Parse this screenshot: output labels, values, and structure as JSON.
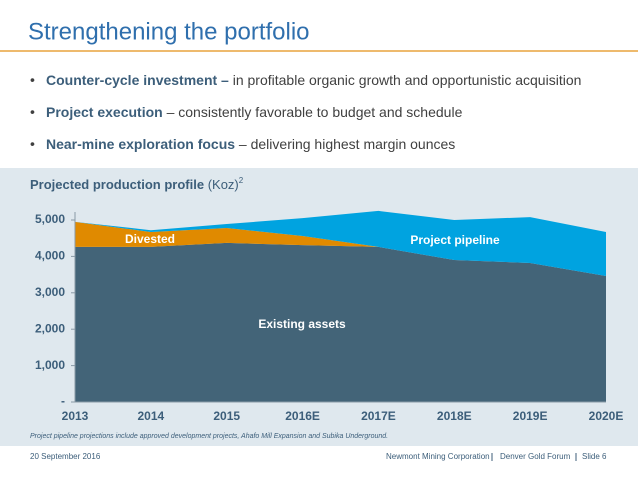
{
  "header": {
    "title": "Strengthening the portfolio"
  },
  "bullets": [
    {
      "bold": "Counter-cycle investment –",
      "text": " in profitable organic growth and opportunistic acquisition"
    },
    {
      "bold": "Project execution",
      "text": " – consistently favorable to budget and schedule"
    },
    {
      "bold": "Near-mine exploration focus",
      "text": " – delivering highest margin ounces"
    }
  ],
  "chart_data": {
    "type": "stacked-area",
    "title": "Projected production profile",
    "unit": "(Koz)",
    "footnote_marker": "2",
    "categories": [
      "2013",
      "2014",
      "2015",
      "2016E",
      "2017E",
      "2018E",
      "2019E",
      "2020E"
    ],
    "series": [
      {
        "name": "Existing assets",
        "color": "#436478",
        "values": [
          4260,
          4260,
          4370,
          4310,
          4260,
          3900,
          3820,
          3460
        ]
      },
      {
        "name": "Divested",
        "color": "#e08a00",
        "values": [
          690,
          410,
          410,
          250,
          0,
          0,
          0,
          0
        ]
      },
      {
        "name": "Project pipeline",
        "color": "#00a3e0",
        "values": [
          0,
          50,
          110,
          490,
          990,
          1100,
          1260,
          1210
        ]
      }
    ],
    "ylim": [
      0,
      5000
    ],
    "yticks": [
      {
        "value": 0,
        "label": "-"
      },
      {
        "value": 1000,
        "label": "1,000"
      },
      {
        "value": 2000,
        "label": "2,000"
      },
      {
        "value": 3000,
        "label": "3,000"
      },
      {
        "value": 4000,
        "label": "4,000"
      },
      {
        "value": 5000,
        "label": "5,000"
      }
    ],
    "footnote": "Project pipeline projections include approved development projects, Ahafo Mill Expansion and Subika Underground."
  },
  "footer": {
    "date": "20 September 2016",
    "company": "Newmont Mining Corporation",
    "event": "Denver Gold Forum",
    "slide": "Slide 6"
  }
}
